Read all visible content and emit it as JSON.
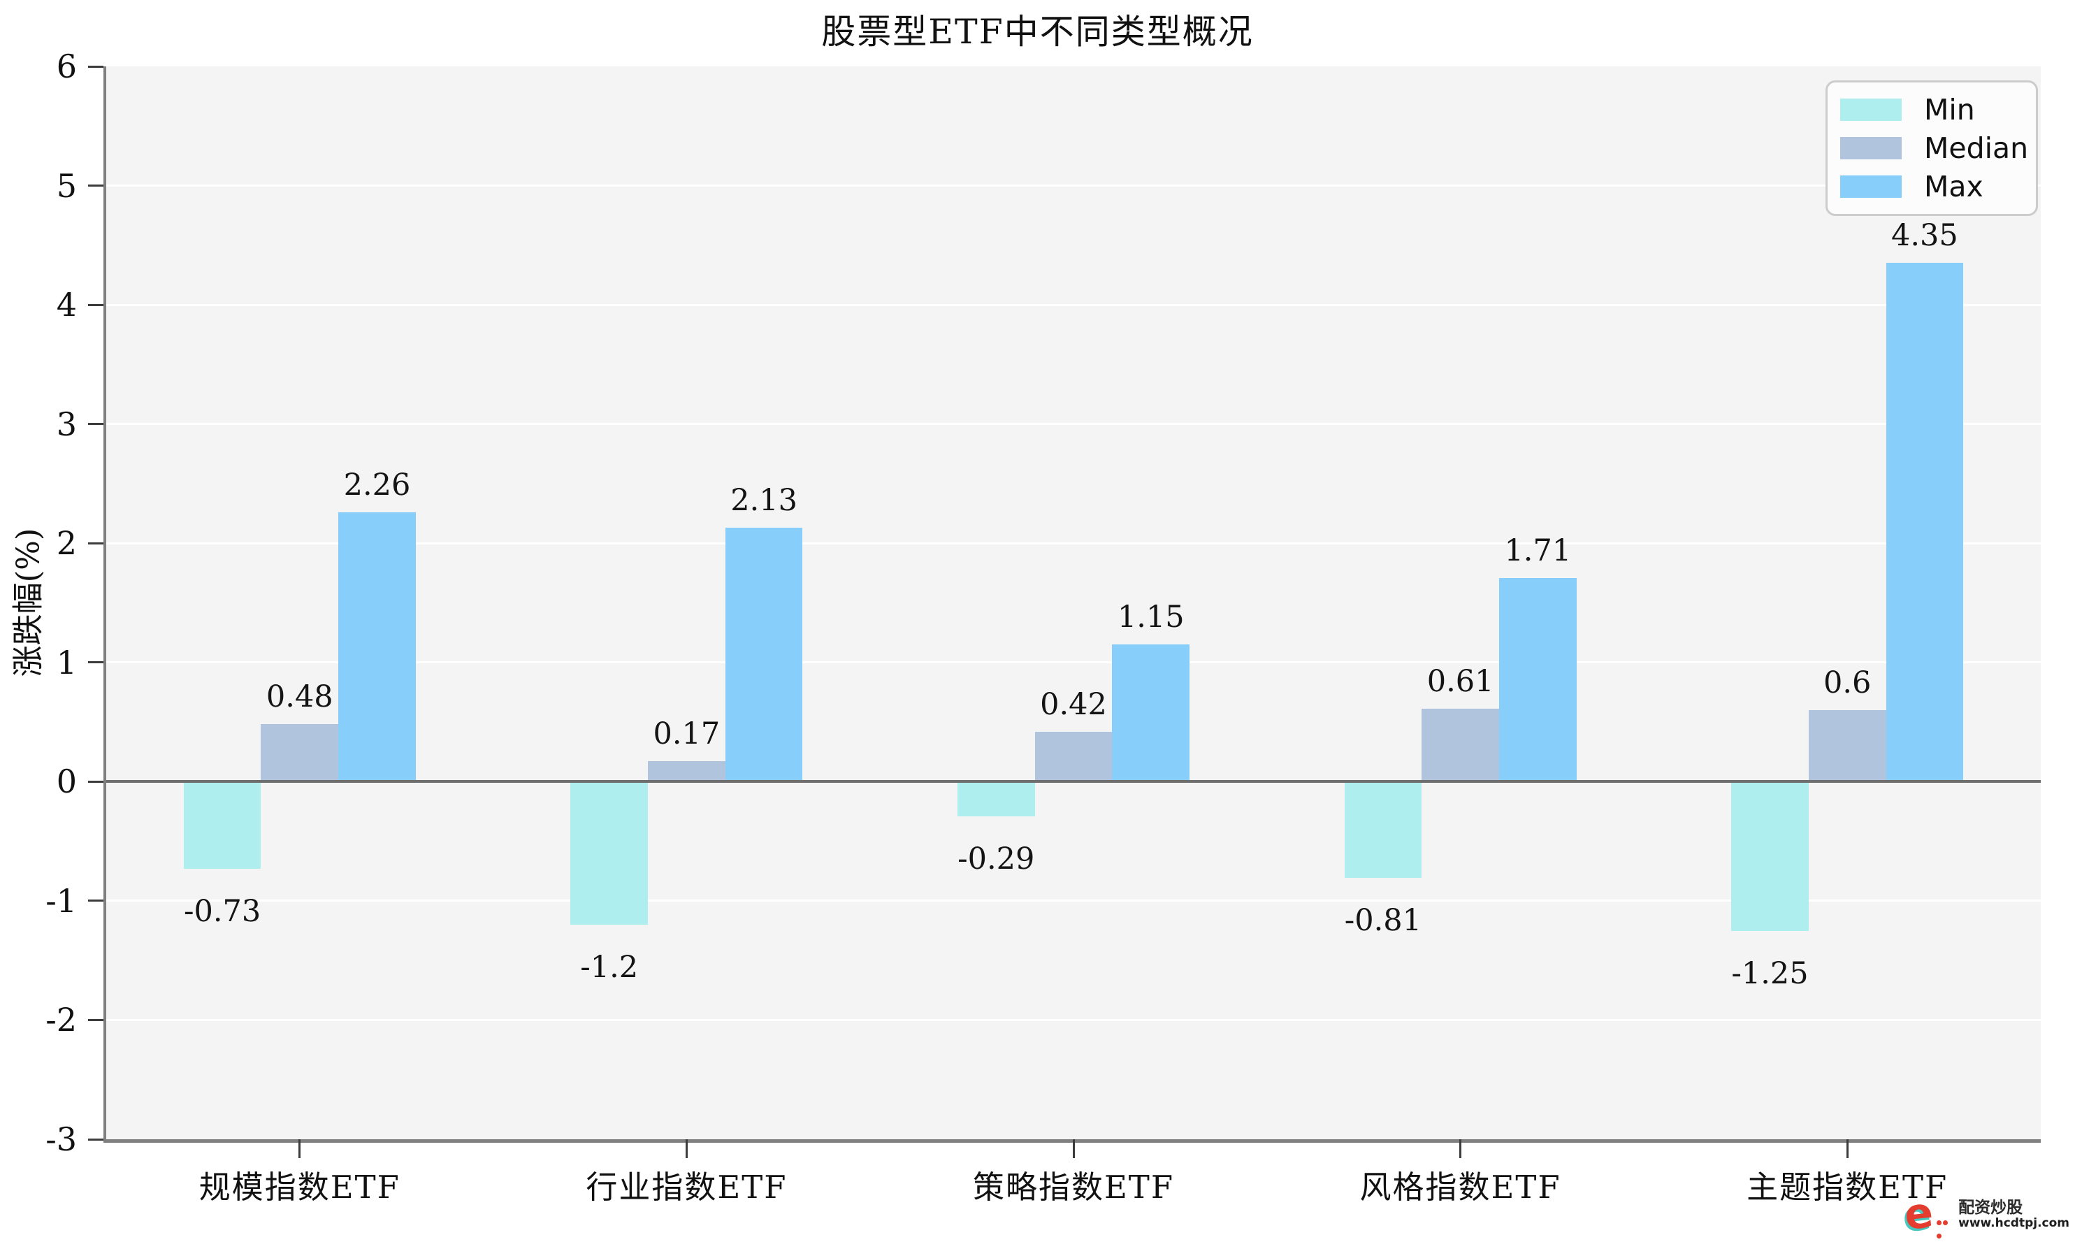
{
  "chart_data": {
    "type": "bar",
    "title": "股票型ETF中不同类型概况",
    "xlabel": "",
    "ylabel": "涨跌幅(%)",
    "ylim": [
      -3,
      6
    ],
    "yticks": [
      6,
      5,
      4,
      3,
      2,
      1,
      0,
      -1,
      -2,
      -3
    ],
    "grid": true,
    "legend": {
      "position": "upper right",
      "entries": [
        "Min",
        "Median",
        "Max"
      ]
    },
    "categories": [
      "规模指数ETF",
      "行业指数ETF",
      "策略指数ETF",
      "风格指数ETF",
      "主题指数ETF"
    ],
    "series": [
      {
        "name": "Min",
        "color": "#AFEEEE",
        "values": [
          -0.73,
          -1.2,
          -0.29,
          -0.81,
          -1.25
        ],
        "labels": [
          "-0.73",
          "-1.2",
          "-0.29",
          "-0.81",
          "-1.25"
        ]
      },
      {
        "name": "Median",
        "color": "#B0C4DE",
        "values": [
          0.48,
          0.17,
          0.42,
          0.61,
          0.6
        ],
        "labels": [
          "0.48",
          "0.17",
          "0.42",
          "0.61",
          "0.6"
        ]
      },
      {
        "name": "Max",
        "color": "#87CEFA",
        "values": [
          2.26,
          2.13,
          1.15,
          1.71,
          4.35
        ],
        "labels": [
          "2.26",
          "2.13",
          "1.15",
          "1.71",
          "4.35"
        ]
      }
    ],
    "colors": {
      "figure_background": "#FFFFFF",
      "plot_background": "#F4F4F4",
      "gridline": "#FFFFFF",
      "zero_line": "#6E6E6E",
      "spine": "#7F7F7F",
      "tick": "#3C3C3C",
      "text": "#111111"
    }
  },
  "watermark": {
    "brand": "配资炒股",
    "url": "www.hcdtpj.com",
    "logo_letter": "e",
    "logo_color": "#E43C2E",
    "logo_accent": "#45C8BF"
  }
}
